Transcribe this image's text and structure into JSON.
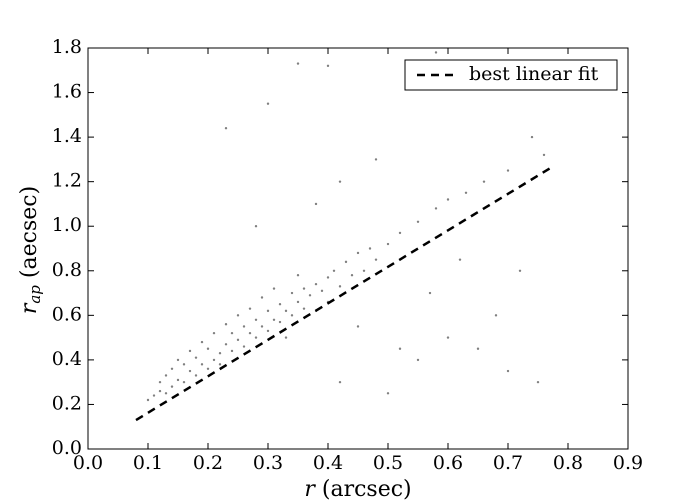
{
  "chart_data": {
    "type": "scatter",
    "xlabel": {
      "symbol": "r",
      "text": "(arcsec)"
    },
    "ylabel": {
      "symbol": "r",
      "subscript": "ap",
      "text": "(aecsec)"
    },
    "xlim": [
      0,
      0.9
    ],
    "ylim": [
      0,
      1.8
    ],
    "xticks": [
      {
        "value": 0,
        "label": "0.0"
      },
      0.1,
      0.2,
      0.3,
      0.4,
      0.5,
      0.6,
      0.7,
      0.8,
      0.9
    ],
    "yticks": [
      {
        "value": 0,
        "label": "0.0"
      },
      0.2,
      0.4,
      0.6,
      0.8,
      {
        "value": 1,
        "label": "1.0"
      },
      1.2,
      1.4,
      1.6,
      1.8
    ],
    "legend": "upper right",
    "series": [
      {
        "color": "#808080",
        "style": "points",
        "x": [
          0.1,
          0.11,
          0.12,
          0.12,
          0.13,
          0.13,
          0.14,
          0.14,
          0.15,
          0.15,
          0.16,
          0.16,
          0.17,
          0.17,
          0.18,
          0.18,
          0.19,
          0.19,
          0.2,
          0.2,
          0.21,
          0.21,
          0.22,
          0.22,
          0.23,
          0.23,
          0.24,
          0.24,
          0.25,
          0.25,
          0.26,
          0.26,
          0.27,
          0.27,
          0.28,
          0.28,
          0.29,
          0.29,
          0.3,
          0.3,
          0.31,
          0.31,
          0.32,
          0.32,
          0.33,
          0.33,
          0.34,
          0.34,
          0.35,
          0.35,
          0.36,
          0.36,
          0.37,
          0.38,
          0.38,
          0.39,
          0.4,
          0.4,
          0.41,
          0.42,
          0.43,
          0.44,
          0.45,
          0.46,
          0.47,
          0.48,
          0.5,
          0.52,
          0.55,
          0.58,
          0.6,
          0.63,
          0.66,
          0.7,
          0.74,
          0.76,
          0.23,
          0.3,
          0.4,
          0.35,
          0.58,
          0.42,
          0.5,
          0.55,
          0.6,
          0.65,
          0.7,
          0.75,
          0.62,
          0.68,
          0.45,
          0.38,
          0.28,
          0.52,
          0.57,
          0.72,
          0.48,
          0.42
        ],
        "values": [
          0.22,
          0.24,
          0.26,
          0.3,
          0.25,
          0.33,
          0.28,
          0.36,
          0.31,
          0.4,
          0.3,
          0.38,
          0.35,
          0.44,
          0.33,
          0.41,
          0.38,
          0.48,
          0.36,
          0.45,
          0.4,
          0.52,
          0.43,
          0.38,
          0.47,
          0.56,
          0.44,
          0.52,
          0.49,
          0.6,
          0.46,
          0.55,
          0.52,
          0.63,
          0.5,
          0.58,
          0.55,
          0.68,
          0.53,
          0.62,
          0.58,
          0.72,
          0.57,
          0.65,
          0.62,
          0.5,
          0.6,
          0.7,
          0.66,
          0.78,
          0.63,
          0.72,
          0.69,
          0.74,
          0.62,
          0.71,
          0.77,
          0.66,
          0.8,
          0.73,
          0.84,
          0.78,
          0.88,
          0.8,
          0.9,
          0.85,
          0.92,
          0.97,
          1.02,
          1.08,
          1.12,
          1.15,
          1.2,
          1.25,
          1.4,
          1.32,
          1.44,
          1.55,
          1.72,
          1.73,
          1.78,
          0.3,
          0.25,
          0.4,
          0.5,
          0.45,
          0.35,
          0.3,
          0.85,
          0.6,
          0.55,
          1.1,
          1.0,
          0.45,
          0.7,
          0.8,
          1.3,
          1.2
        ]
      },
      {
        "name": "best linear fit",
        "color": "#000000",
        "style": "dashed",
        "x": [
          0.08,
          0.77
        ],
        "values": [
          0.13,
          1.26
        ]
      }
    ]
  }
}
